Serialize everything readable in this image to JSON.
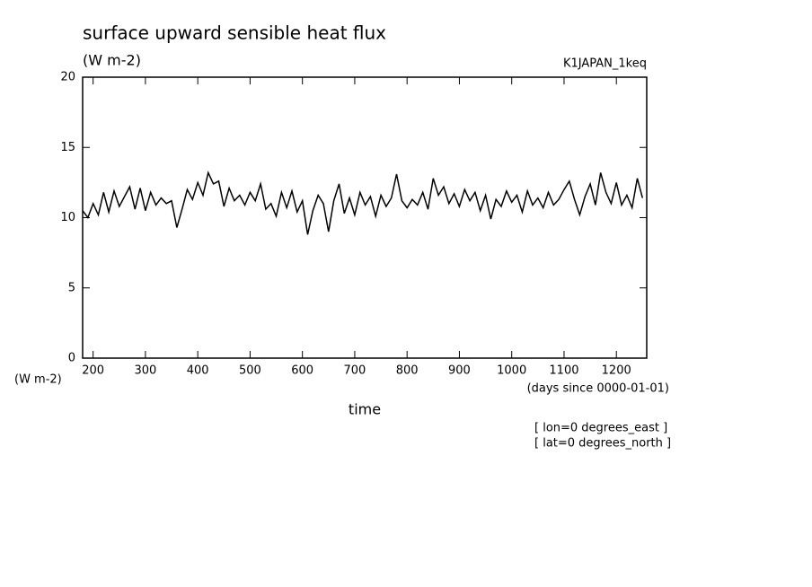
{
  "chart_data": {
    "type": "line",
    "title": "surface upward sensible heat flux",
    "subtitle": "(W m-2)",
    "annotation_right": "K1JAPAN_1keq",
    "ylabel": "(W m-2)",
    "xunits": "(days since 0000-01-01)",
    "xlabel": "time",
    "notes": [
      "[ lon=0 degrees_east ]",
      "[ lat=0 degrees_north ]"
    ],
    "x": [
      180,
      190,
      200,
      210,
      220,
      230,
      240,
      250,
      260,
      270,
      280,
      290,
      300,
      310,
      320,
      330,
      340,
      350,
      360,
      370,
      380,
      390,
      400,
      410,
      420,
      430,
      440,
      450,
      460,
      470,
      480,
      490,
      500,
      510,
      520,
      530,
      540,
      550,
      560,
      570,
      580,
      590,
      600,
      610,
      620,
      630,
      640,
      650,
      660,
      670,
      680,
      690,
      700,
      710,
      720,
      730,
      740,
      750,
      760,
      770,
      780,
      790,
      800,
      810,
      820,
      830,
      840,
      850,
      860,
      870,
      880,
      890,
      900,
      910,
      920,
      930,
      940,
      950,
      960,
      970,
      980,
      990,
      1000,
      1010,
      1020,
      1030,
      1040,
      1050,
      1060,
      1070,
      1080,
      1090,
      1100,
      1110,
      1120,
      1130,
      1140,
      1150,
      1160,
      1170,
      1180,
      1190,
      1200,
      1210,
      1220,
      1230,
      1240,
      1250
    ],
    "series": [
      {
        "name": "sensible heat flux",
        "color": "#000000",
        "values": [
          10.5,
          10,
          11,
          10.2,
          11.8,
          10.4,
          11.9,
          10.8,
          11.5,
          12.2,
          10.6,
          12.1,
          10.5,
          11.8,
          10.9,
          11.4,
          11,
          11.2,
          9.3,
          10.6,
          12,
          11.3,
          12.5,
          11.6,
          13.2,
          12.4,
          12.6,
          10.8,
          12.1,
          11.2,
          11.6,
          10.9,
          11.8,
          11.2,
          12.4,
          10.6,
          11,
          10.1,
          11.8,
          10.7,
          11.9,
          10.4,
          11.2,
          8.8,
          10.5,
          11.6,
          11,
          9,
          11.2,
          12.4,
          10.3,
          11.4,
          10.2,
          11.8,
          10.9,
          11.5,
          10.1,
          11.6,
          10.8,
          11.4,
          13.1,
          11.2,
          10.7,
          11.3,
          10.9,
          11.8,
          10.6,
          12.8,
          11.6,
          12.2,
          11,
          11.7,
          10.8,
          12,
          11.2,
          11.8,
          10.5,
          11.6,
          9.9,
          11.3,
          10.8,
          11.9,
          11.1,
          11.6,
          10.4,
          11.9,
          10.9,
          11.4,
          10.7,
          11.8,
          10.9,
          11.3,
          12,
          12.6,
          11.3,
          10.2,
          11.5,
          12.4,
          10.9,
          13.2,
          11.8,
          11,
          12.5,
          10.9,
          11.6,
          10.7,
          12.8,
          11.4
        ]
      }
    ],
    "xlim": [
      180,
      1258
    ],
    "xticks": [
      200,
      300,
      400,
      500,
      600,
      700,
      800,
      900,
      1000,
      1100,
      1200
    ],
    "ylim": [
      0,
      20
    ],
    "yticks": [
      0,
      5,
      10,
      15,
      20
    ]
  }
}
